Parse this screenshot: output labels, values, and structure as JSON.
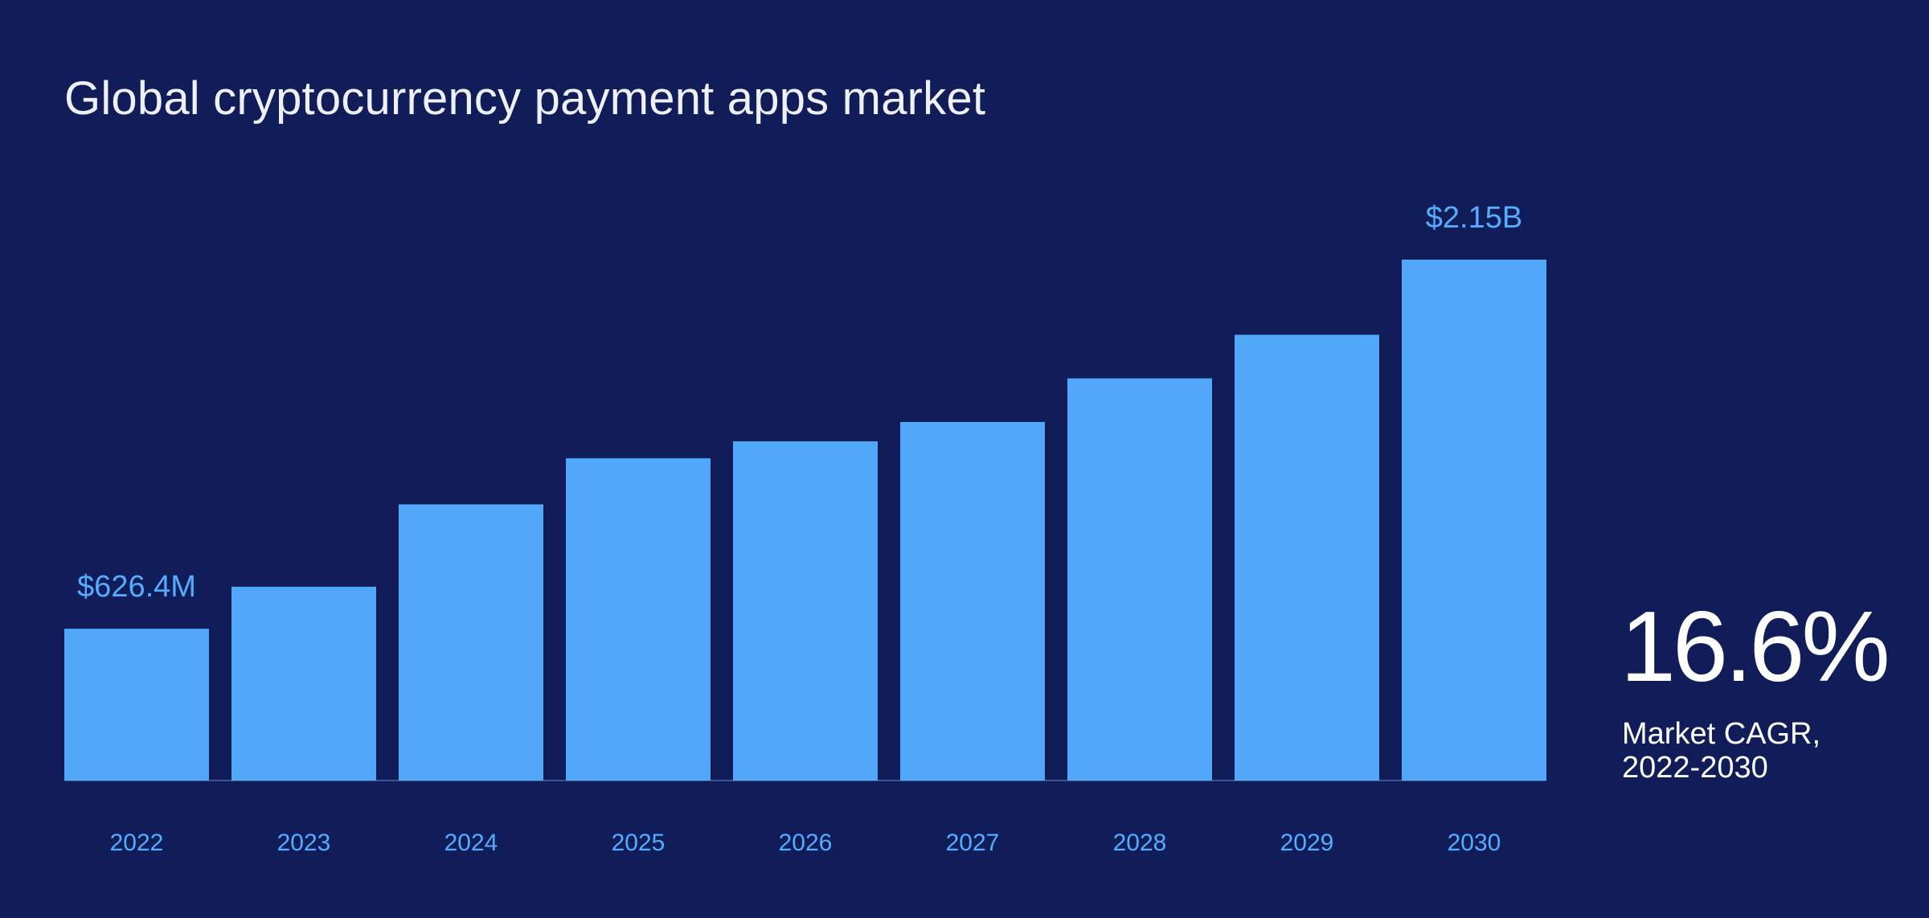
{
  "title": "Global cryptocurrency payment apps market",
  "stat": {
    "value": "16.6%",
    "label": "Market CAGR, 2022-2030"
  },
  "colors": {
    "background": "#111d59",
    "bar": "#51a8fb",
    "label": "#55acff",
    "title": "#eef0f6"
  },
  "chart_data": {
    "type": "bar",
    "title": "Global cryptocurrency payment apps market",
    "categories": [
      "2022",
      "2023",
      "2024",
      "2025",
      "2026",
      "2027",
      "2028",
      "2029",
      "2030"
    ],
    "values": [
      0.6264,
      0.8,
      1.14,
      1.33,
      1.4,
      1.48,
      1.66,
      1.84,
      2.15
    ],
    "unit": "USD billions",
    "data_labels": [
      {
        "category": "2022",
        "text": "$626.4M"
      },
      {
        "category": "2030",
        "text": "$2.15B"
      }
    ],
    "xlabel": "",
    "ylabel": "",
    "ylim": [
      0,
      2.15
    ],
    "grid": false,
    "legend": "none"
  }
}
